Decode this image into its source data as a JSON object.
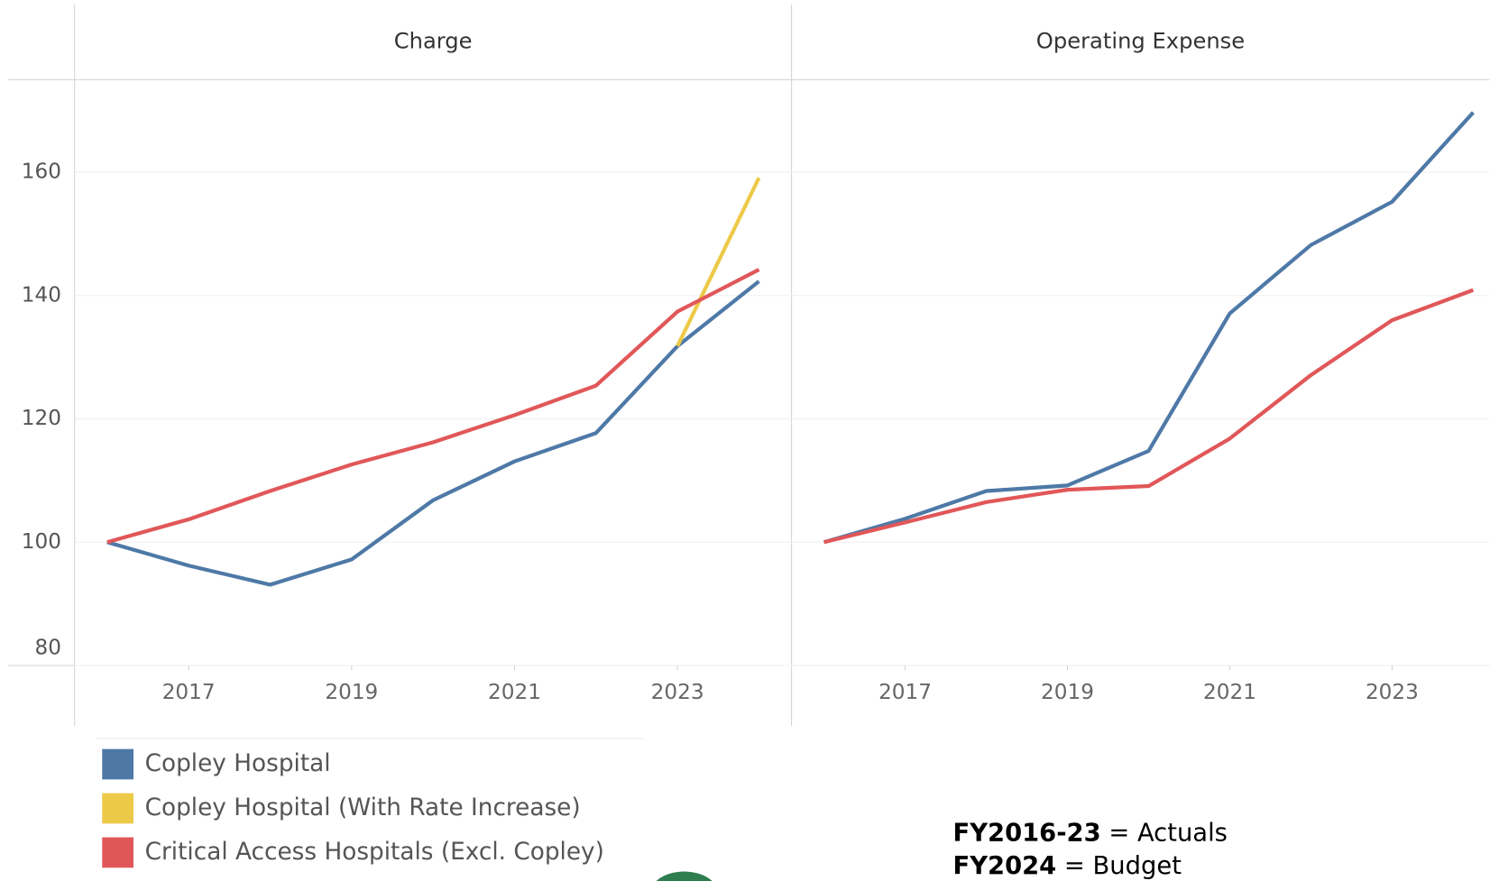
{
  "chart_data": [
    {
      "type": "line",
      "title": "Charge",
      "x": [
        2016,
        2017,
        2018,
        2019,
        2020,
        2021,
        2022,
        2023,
        2024
      ],
      "xlim": [
        2015.6,
        2024.4
      ],
      "xticks": [
        2017,
        2019,
        2021,
        2023
      ],
      "ylim": [
        80,
        175
      ],
      "yticks": [
        80,
        100,
        120,
        140,
        160
      ],
      "grid": true,
      "series": [
        {
          "name": "Copley Hospital",
          "color": "#4e79a7",
          "values": [
            100,
            96.2,
            93.1,
            97.2,
            106.8,
            113.1,
            117.7,
            131.8,
            142.3
          ]
        },
        {
          "name": "Copley Hospital (With Rate Increase)",
          "color": "#edc948",
          "values": [
            null,
            null,
            null,
            null,
            null,
            null,
            null,
            131.8,
            159.1
          ]
        },
        {
          "name": "Critical Access Hospitals (Excl. Copley)",
          "color": "#e15759",
          "values": [
            100,
            103.7,
            108.3,
            112.6,
            116.2,
            120.6,
            125.4,
            137.4,
            144.2
          ]
        }
      ]
    },
    {
      "type": "line",
      "title": "Operating Expense",
      "x": [
        2016,
        2017,
        2018,
        2019,
        2020,
        2021,
        2022,
        2023,
        2024
      ],
      "xlim": [
        2015.6,
        2024.2
      ],
      "xticks": [
        2017,
        2019,
        2021,
        2023
      ],
      "ylim": [
        80,
        175
      ],
      "grid": true,
      "series": [
        {
          "color": "#4e79a7",
          "values": [
            100,
            103.8,
            108.3,
            109.2,
            114.8,
            137.1,
            148.2,
            155.2,
            169.7
          ]
        },
        {
          "color": "#e15759",
          "values": [
            100,
            103.2,
            106.5,
            108.5,
            109.1,
            116.8,
            127.1,
            136.0,
            140.9
          ]
        }
      ]
    }
  ],
  "notes": [
    {
      "bold": "FY2016-23",
      "text": " = Actuals"
    },
    {
      "bold": "FY2024",
      "text": " = Budget"
    }
  ]
}
